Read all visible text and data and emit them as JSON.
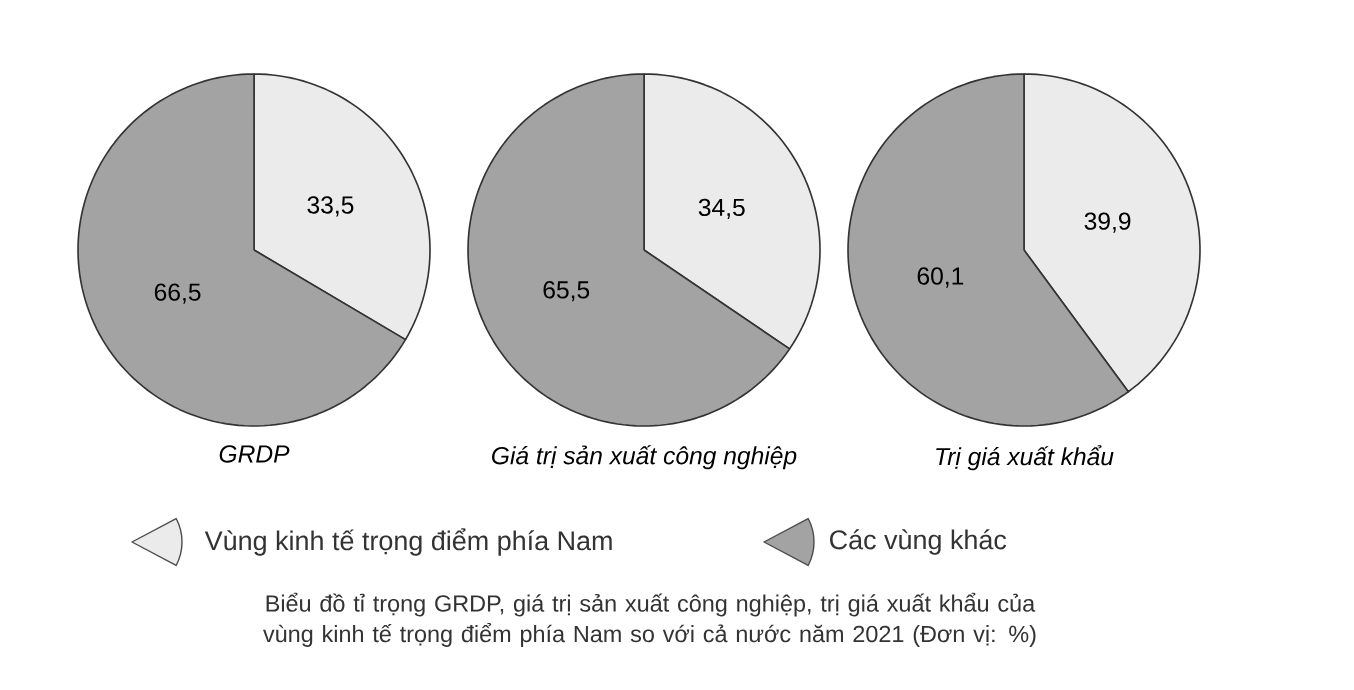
{
  "chart_data": [
    {
      "type": "pie",
      "xlabel": "*GRDP*",
      "categories": [
        "Vùng kinh tế trọng điểm phía Nam",
        "Các vùng khác"
      ],
      "values": [
        33.5,
        66.5
      ],
      "value_labels": [
        "33,5",
        "66,5"
      ],
      "colors": [
        "#ebebeb",
        "#a3a3a3"
      ],
      "legend": "bottom",
      "annotations": [
        "Biểu đồ tỉ trọng GRDP, giá trị sản xuất công nghiệp, trị giá xuất khẩu của vùng kinh tế trọng điểm phía Nam so với cả nước năm 2021 (Đơn vị: %)"
      ]
    },
    {
      "type": "pie",
      "xlabel": "*Giá trị sản xuất công nghiệp*",
      "categories": [
        null,
        null
      ],
      "values": [
        34.5,
        65.5
      ],
      "value_labels": [
        "34,5",
        "65,5"
      ],
      "colors": [
        "#ebebeb",
        "#a3a3a3"
      ]
    },
    {
      "type": "pie",
      "xlabel": "*Trị giá xuất khẩu*",
      "categories": [
        null,
        null
      ],
      "values": [
        39.9,
        60.1
      ],
      "value_labels": [
        "39,9",
        "60,1"
      ],
      "colors": [
        "#ebebeb",
        "#a3a3a3"
      ]
    }
  ]
}
